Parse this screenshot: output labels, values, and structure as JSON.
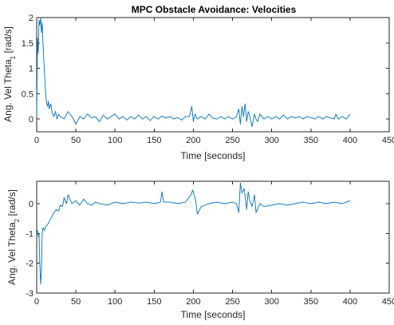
{
  "figure": {
    "title": "MPC Obstacle Avoidance: Velocities"
  },
  "colors": {
    "series": "#0072BD",
    "axes": "#262626",
    "background": "#ffffff"
  },
  "chart_data": [
    {
      "type": "line",
      "title": "MPC Obstacle Avoidance: Velocities",
      "xlabel": "Time [seconds]",
      "ylabel_main": "Ang. Vel Theta",
      "ylabel_sub": "1",
      "ylabel_unit": " [rad/s]",
      "xlim": [
        0,
        450
      ],
      "ylim": [
        -0.25,
        2
      ],
      "xticks": [
        0,
        50,
        100,
        150,
        200,
        250,
        300,
        350,
        400,
        450
      ],
      "yticks": [
        0,
        0.5,
        1,
        1.5,
        2
      ],
      "ytick_labels": [
        "0",
        "0.5",
        "1",
        "1.5",
        "2"
      ],
      "grid": false,
      "series": [
        {
          "x": [
            0,
            1,
            2,
            3,
            4,
            5,
            6,
            7,
            8,
            9,
            10,
            11,
            12,
            13,
            14,
            15,
            16,
            18,
            20,
            22,
            24,
            26,
            28,
            30,
            35,
            40,
            45,
            50,
            55,
            60,
            65,
            70,
            75,
            80,
            85,
            90,
            95,
            100,
            105,
            110,
            115,
            120,
            125,
            130,
            135,
            140,
            145,
            150,
            155,
            160,
            165,
            170,
            175,
            180,
            185,
            190,
            195,
            198,
            200,
            202,
            205,
            210,
            215,
            220,
            225,
            230,
            235,
            240,
            245,
            250,
            255,
            258,
            260,
            262,
            264,
            266,
            268,
            270,
            272,
            275,
            278,
            280,
            282,
            285,
            290,
            295,
            300,
            305,
            310,
            315,
            320,
            325,
            330,
            335,
            340,
            345,
            350,
            355,
            360,
            365,
            370,
            375,
            380,
            382,
            385,
            390,
            395,
            398,
            400
          ],
          "y": [
            0.05,
            1.6,
            1.3,
            1.95,
            1.85,
            2.0,
            1.7,
            1.9,
            1.5,
            1.2,
            0.9,
            0.6,
            0.4,
            0.3,
            0.25,
            0.35,
            0.2,
            0.3,
            0.1,
            0.05,
            0.15,
            0.0,
            0.1,
            0.05,
            0.0,
            0.15,
            0.05,
            -0.1,
            0.05,
            0.0,
            0.1,
            0.02,
            0.05,
            -0.05,
            0.08,
            0.0,
            0.05,
            0.1,
            0.0,
            0.05,
            -0.02,
            0.05,
            0.0,
            0.08,
            0.0,
            0.05,
            -0.03,
            0.05,
            0.0,
            0.06,
            0.02,
            0.05,
            0.0,
            0.03,
            -0.02,
            0.05,
            0.05,
            0.25,
            -0.05,
            0.1,
            0.0,
            0.05,
            0.0,
            0.1,
            0.02,
            0.0,
            0.05,
            0.0,
            0.05,
            0.0,
            0.05,
            0.2,
            -0.1,
            0.25,
            0.05,
            0.3,
            -0.05,
            0.15,
            0.05,
            -0.15,
            0.1,
            0.0,
            -0.05,
            0.1,
            0.0,
            0.05,
            0.0,
            0.05,
            0.0,
            0.08,
            0.0,
            0.05,
            0.02,
            0.05,
            0.0,
            0.05,
            0.03,
            0.0,
            0.05,
            0.0,
            0.05,
            0.02,
            0.0,
            0.1,
            0.0,
            0.05,
            0.0,
            0.05,
            0.1
          ]
        }
      ]
    },
    {
      "type": "line",
      "xlabel": "Time [seconds]",
      "ylabel_main": "Ang. Vel Theta",
      "ylabel_sub": "2",
      "ylabel_unit": " [rad/s]",
      "xlim": [
        0,
        450
      ],
      "ylim": [
        -3,
        0.75
      ],
      "xticks": [
        0,
        50,
        100,
        150,
        200,
        250,
        300,
        350,
        400,
        450
      ],
      "yticks": [
        -3,
        -2,
        -1,
        0
      ],
      "ytick_labels": [
        "-3",
        "-2",
        "-1",
        "0"
      ],
      "grid": false,
      "series": [
        {
          "x": [
            0,
            1,
            2,
            3,
            4,
            5,
            6,
            7,
            8,
            10,
            12,
            14,
            16,
            18,
            20,
            22,
            25,
            28,
            30,
            33,
            35,
            38,
            40,
            45,
            50,
            55,
            60,
            65,
            70,
            75,
            80,
            90,
            100,
            110,
            120,
            130,
            140,
            150,
            158,
            160,
            162,
            170,
            180,
            190,
            197,
            199,
            201,
            203,
            205,
            210,
            220,
            230,
            240,
            250,
            255,
            258,
            260,
            262,
            265,
            268,
            270,
            272,
            275,
            278,
            280,
            285,
            290,
            300,
            310,
            320,
            330,
            340,
            350,
            360,
            370,
            380,
            390,
            400
          ],
          "y": [
            -1.0,
            -0.9,
            -1.1,
            -1.0,
            -2.0,
            -2.7,
            -2.3,
            -1.0,
            -0.8,
            -0.9,
            -0.75,
            -0.7,
            -0.6,
            -0.5,
            -0.4,
            -0.3,
            -0.2,
            -0.25,
            -0.05,
            -0.1,
            0.2,
            0.0,
            0.3,
            0.0,
            0.1,
            -0.05,
            0.15,
            0.0,
            -0.05,
            0.05,
            0.0,
            -0.05,
            0.05,
            0.0,
            0.05,
            0.02,
            0.05,
            0.0,
            0.05,
            0.4,
            0.05,
            0.05,
            0.0,
            0.05,
            0.3,
            0.45,
            0.3,
            0.1,
            -0.35,
            -0.1,
            0.0,
            0.05,
            0.0,
            0.05,
            0.0,
            -0.3,
            0.7,
            0.35,
            0.5,
            -0.2,
            0.4,
            0.1,
            -0.1,
            0.3,
            -0.3,
            0.0,
            -0.1,
            -0.05,
            0.0,
            -0.05,
            0.0,
            0.05,
            0.0,
            0.05,
            0.0,
            0.05,
            0.0,
            0.1
          ]
        }
      ]
    }
  ]
}
